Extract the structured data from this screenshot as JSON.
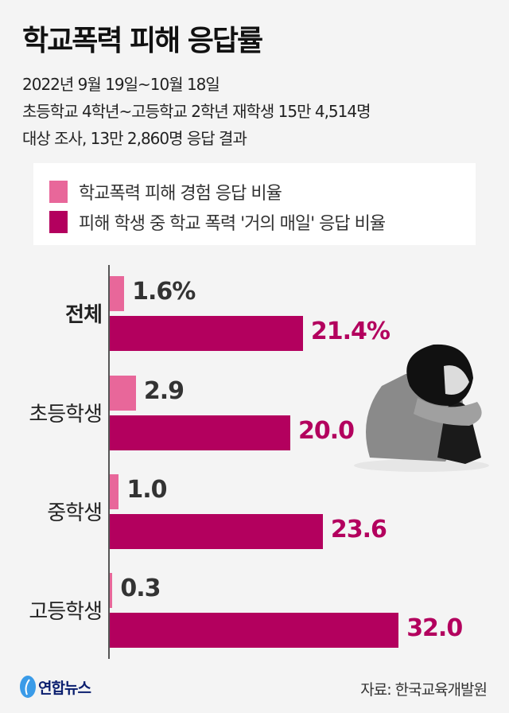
{
  "title": "학교폭력 피해 응답률",
  "subtitle_lines": [
    "2022년 9월 19일~10월 18일",
    "초등학교 4학년~고등학교 2학년 재학생 15만 4,514명",
    "대상 조사, 13만 2,860명 응답 결과"
  ],
  "source": "자료: 한국교육개발원",
  "logo": "연합뉴스",
  "chart_data": {
    "type": "bar",
    "orientation": "horizontal",
    "categories": [
      "전체",
      "초등학생",
      "중학생",
      "고등학생"
    ],
    "series": [
      {
        "name": "학교폭력 피해 경험 응답 비율",
        "values": [
          1.6,
          2.9,
          1.0,
          0.3
        ],
        "labels": [
          "1.6%",
          "2.9",
          "1.0",
          "0.3"
        ],
        "color": "#e8679a"
      },
      {
        "name": "피해 학생 중 학교 폭력 '거의 매일' 응답 비율",
        "values": [
          21.4,
          20.0,
          23.6,
          32.0
        ],
        "labels": [
          "21.4%",
          "20.0",
          "23.6",
          "32.0"
        ],
        "color": "#b3005e"
      }
    ],
    "legend": "top",
    "grid": false
  }
}
